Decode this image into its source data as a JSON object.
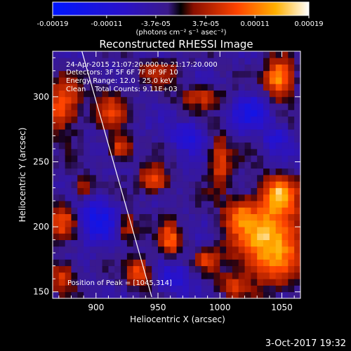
{
  "chart_data": {
    "type": "heatmap",
    "title": "Reconstructed RHESSI Image",
    "xlabel": "Heliocentric X (arcsec)",
    "ylabel": "Heliocentric Y (arcsec)",
    "xlim": [
      865,
      1065
    ],
    "ylim": [
      145,
      335
    ],
    "x_ticks": [
      900,
      950,
      1000,
      1050
    ],
    "y_ticks": [
      150,
      200,
      250,
      300
    ],
    "colorbar": {
      "range": [
        -0.00019,
        0.00019
      ],
      "tick_values": [
        -0.00019,
        -0.00011,
        -3.7e-05,
        3.7e-05,
        0.00011,
        0.00019
      ],
      "tick_labels": [
        "-0.00019",
        "-0.00011",
        "-3.7e-05",
        "3.7e-05",
        "0.00011",
        "0.00019"
      ],
      "units_label": "(photons cm⁻² s⁻¹ asec⁻²)"
    },
    "annotations": [
      "24-Apr-2015 21:07:20.000 to 21:17:20.000",
      "Detectors: 3F 5F 6F 7F 8F 9F 10",
      "Energy Range: 12.0 - 25.0 keV",
      "Clean    Total Counts: 9.11E+03",
      "Position of Peak = [1045,314]"
    ],
    "peak": {
      "x": 1045,
      "y": 314
    },
    "limb_line": {
      "x": [
        888,
        945
      ],
      "y": [
        337,
        146
      ]
    },
    "hot_spots": [
      {
        "x": 1040,
        "y": 190,
        "v": 1.0,
        "sx": 20,
        "sy": 22
      },
      {
        "x": 1048,
        "y": 314,
        "v": 0.95,
        "sx": 8,
        "sy": 10
      },
      {
        "x": 1048,
        "y": 225,
        "v": 0.7,
        "sx": 9,
        "sy": 9
      },
      {
        "x": 873,
        "y": 292,
        "v": 0.65,
        "sx": 10,
        "sy": 14
      },
      {
        "x": 873,
        "y": 205,
        "v": 0.6,
        "sx": 8,
        "sy": 10
      },
      {
        "x": 873,
        "y": 162,
        "v": 0.55,
        "sx": 8,
        "sy": 8
      },
      {
        "x": 912,
        "y": 292,
        "v": 0.5,
        "sx": 9,
        "sy": 10
      },
      {
        "x": 920,
        "y": 260,
        "v": 0.65,
        "sx": 6,
        "sy": 6
      },
      {
        "x": 947,
        "y": 236,
        "v": 0.7,
        "sx": 8,
        "sy": 7
      },
      {
        "x": 960,
        "y": 190,
        "v": 0.65,
        "sx": 6,
        "sy": 9
      },
      {
        "x": 935,
        "y": 165,
        "v": 0.6,
        "sx": 7,
        "sy": 8
      },
      {
        "x": 1000,
        "y": 250,
        "v": 0.55,
        "sx": 6,
        "sy": 15
      },
      {
        "x": 985,
        "y": 300,
        "v": 0.5,
        "sx": 12,
        "sy": 6
      },
      {
        "x": 890,
        "y": 230,
        "v": 0.45,
        "sx": 6,
        "sy": 6
      },
      {
        "x": 925,
        "y": 200,
        "v": 0.5,
        "sx": 6,
        "sy": 8
      },
      {
        "x": 990,
        "y": 175,
        "v": 0.45,
        "sx": 7,
        "sy": 6
      },
      {
        "x": 1015,
        "y": 210,
        "v": 0.45,
        "sx": 8,
        "sy": 8
      },
      {
        "x": 950,
        "y": 320,
        "v": 0.4,
        "sx": 12,
        "sy": 6
      },
      {
        "x": 1010,
        "y": 155,
        "v": 0.4,
        "sx": 8,
        "sy": 6
      }
    ],
    "cold_spots": [
      {
        "x": 900,
        "y": 205,
        "v": -0.55,
        "sx": 12,
        "sy": 12
      },
      {
        "x": 1025,
        "y": 290,
        "v": -0.45,
        "sx": 10,
        "sy": 10
      },
      {
        "x": 975,
        "y": 270,
        "v": -0.4,
        "sx": 10,
        "sy": 8
      },
      {
        "x": 965,
        "y": 160,
        "v": -0.35,
        "sx": 10,
        "sy": 8
      },
      {
        "x": 1045,
        "y": 270,
        "v": -0.35,
        "sx": 7,
        "sy": 8
      }
    ]
  },
  "footer": {
    "date": "3-Oct-2017 19:32"
  }
}
